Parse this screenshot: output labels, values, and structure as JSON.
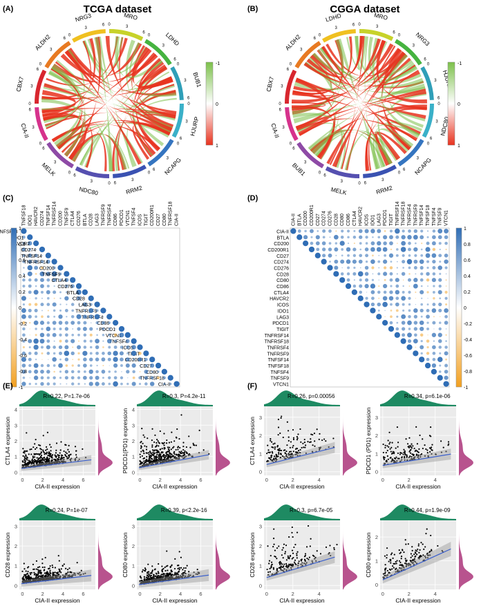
{
  "panels": {
    "A": {
      "tag": "(A)",
      "title": "TCGA dataset"
    },
    "B": {
      "tag": "(B)",
      "title": "CGGA dataset"
    },
    "C": {
      "tag": "(C)"
    },
    "D": {
      "tag": "(D)"
    },
    "E": {
      "tag": "(E)"
    },
    "F": {
      "tag": "(F)"
    }
  },
  "chart_data": [
    {
      "type": "chord",
      "panel": "A",
      "title": "TCGA dataset",
      "sectors": [
        "MRO",
        "LDHD",
        "BUB1",
        "HJURP",
        "NCAPG",
        "RRM2",
        "NDC80",
        "MELK",
        "CIA-II",
        "CBX7",
        "ALDH2",
        "NRG3"
      ],
      "sector_ticks": [
        0,
        3,
        6
      ],
      "legend": {
        "max": "-1",
        "mid": "0",
        "min": "1"
      },
      "colors": {
        "positive": "#e8321e",
        "negative": "#7cc04a"
      }
    },
    {
      "type": "chord",
      "panel": "B",
      "title": "CGGA dataset",
      "sectors": [
        "MRO",
        "NRG3",
        "HJURP",
        "NDC80",
        "NCAPG",
        "RRM2",
        "MELK",
        "BUB1",
        "CIA-II",
        "CBX7",
        "ALDH2",
        "LDHD"
      ],
      "sector_ticks": [
        0,
        3,
        6
      ],
      "legend": {
        "max": "-1",
        "mid": "0",
        "min": "1"
      },
      "colors": {
        "positive": "#e8321e",
        "negative": "#7cc04a"
      }
    },
    {
      "type": "heatmap",
      "panel": "C",
      "layout": "lower-triangle",
      "labels": [
        "TNFSF18",
        "IDO1",
        "HAVCR2",
        "CD274",
        "TNFSF14",
        "TNFRSF14",
        "CD200",
        "TNFSF9",
        "CTLA4",
        "CD276",
        "BTLA",
        "CD28",
        "LAG3",
        "TNFRSF9",
        "TNFRSF4",
        "CD86",
        "PDCD1",
        "VTCN1",
        "TNFSF4",
        "ICOS",
        "TIGIT",
        "CD200R1",
        "CD27",
        "CD80",
        "TNFRSF18",
        "CIA-II"
      ],
      "scale_ticks": [
        "1",
        "0.8",
        "0.6",
        "0.4",
        "0.2",
        "0",
        "-0.2",
        "-0.4",
        "-0.6",
        "-0.8",
        "-1"
      ],
      "range": [
        -1,
        1
      ]
    },
    {
      "type": "heatmap",
      "panel": "D",
      "layout": "upper-triangle",
      "labels": [
        "CIA-II",
        "BTLA",
        "CD200",
        "CD200R1",
        "CD27",
        "CD274",
        "CD276",
        "CD28",
        "CD80",
        "CD86",
        "CTLA4",
        "HAVCR2",
        "ICOS",
        "IDO1",
        "LAG3",
        "PDCD1",
        "TIGIT",
        "TNFRSF14",
        "TNFRSF18",
        "TNFRSF4",
        "TNFRSF9",
        "TNFSF14",
        "TNFSF18",
        "TNFSF4",
        "TNFSF9",
        "VTCN1"
      ],
      "scale_ticks": [
        "1",
        "0.8",
        "0.6",
        "0.4",
        "0.2",
        "0",
        "-0.2",
        "-0.4",
        "-0.6",
        "-0.8",
        "-1"
      ],
      "range": [
        -1,
        1
      ]
    },
    {
      "type": "scatter",
      "panel": "E",
      "stat": "R=0.22, P=1.7e-06",
      "xlabel": "CIA-II expression",
      "ylabel": "CTLA4 expression",
      "x_ticks": [
        0,
        2,
        4,
        6
      ],
      "y_ticks": [
        0,
        1,
        2,
        3,
        4
      ],
      "xlim": [
        -0.3,
        7.2
      ],
      "ylim": [
        -0.2,
        4.2
      ],
      "n": 420,
      "slope": 0.08,
      "intercept": 0.25,
      "spread": 0.55
    },
    {
      "type": "scatter",
      "panel": "E",
      "stat": "R=0.3, P=4.2e-11",
      "xlabel": "CIA-II expression",
      "ylabel": "PDCD1(PD1) expression",
      "x_ticks": [
        0,
        2,
        4,
        6
      ],
      "y_ticks": [
        0,
        1,
        2,
        3,
        4
      ],
      "xlim": [
        -0.3,
        7.2
      ],
      "ylim": [
        -0.2,
        4.2
      ],
      "n": 420,
      "slope": 0.12,
      "intercept": 0.3,
      "spread": 0.7
    },
    {
      "type": "scatter",
      "panel": "E",
      "stat": "R=0.24, P=1e-07",
      "xlabel": "CIA-II expression",
      "ylabel": "CD28 expression",
      "x_ticks": [
        0,
        2,
        4,
        6
      ],
      "y_ticks": [
        0,
        1,
        2,
        3
      ],
      "xlim": [
        -0.3,
        7.2
      ],
      "ylim": [
        -0.2,
        3.3
      ],
      "n": 420,
      "slope": 0.06,
      "intercept": 0.1,
      "spread": 0.35
    },
    {
      "type": "scatter",
      "panel": "E",
      "stat": "R=0.39, p<2.2e-16",
      "xlabel": "CIA-II expression",
      "ylabel": "CD80 expression",
      "x_ticks": [
        0,
        2,
        4,
        6
      ],
      "y_ticks": [
        0,
        1,
        2,
        3
      ],
      "xlim": [
        -0.3,
        7.2
      ],
      "ylim": [
        -0.2,
        3.3
      ],
      "n": 420,
      "slope": 0.07,
      "intercept": 0.05,
      "spread": 0.35
    },
    {
      "type": "scatter",
      "panel": "F",
      "stat": "R=0.26, p=0.00056",
      "xlabel": "CIA-II expression",
      "ylabel": "CTLA4 expression",
      "x_ticks": [
        0,
        2,
        4
      ],
      "y_ticks": [
        0,
        1,
        2,
        3
      ],
      "xlim": [
        -0.2,
        5.6
      ],
      "ylim": [
        -0.2,
        3.6
      ],
      "n": 170,
      "slope": 0.18,
      "intercept": 0.4,
      "spread": 0.75
    },
    {
      "type": "scatter",
      "panel": "F",
      "stat": "R=0.34, p=6.1e-06",
      "xlabel": "CIA-II expression",
      "ylabel": "PDCD1 (PD1) expression",
      "x_ticks": [
        0,
        2,
        4
      ],
      "y_ticks": [
        0,
        1,
        2,
        3
      ],
      "xlim": [
        -0.2,
        5.6
      ],
      "ylim": [
        -0.2,
        3.6
      ],
      "n": 170,
      "slope": 0.12,
      "intercept": 0.35,
      "spread": 0.6
    },
    {
      "type": "scatter",
      "panel": "F",
      "stat": "R=0.3, p=6.7e-05",
      "xlabel": "CIA-II expression",
      "ylabel": "CD28 expression",
      "x_ticks": [
        0,
        2,
        4
      ],
      "y_ticks": [
        0,
        1,
        2,
        3
      ],
      "xlim": [
        -0.2,
        5.6
      ],
      "ylim": [
        -0.2,
        3.3
      ],
      "n": 170,
      "slope": 0.2,
      "intercept": 0.4,
      "spread": 0.7
    },
    {
      "type": "scatter",
      "panel": "F",
      "stat": "R=0.44, p=1.9e-09",
      "xlabel": "CIA-II expression",
      "ylabel": "CD80 expression",
      "x_ticks": [
        0,
        2,
        4
      ],
      "y_ticks": [
        0,
        1,
        2
      ],
      "xlim": [
        -0.2,
        5.6
      ],
      "ylim": [
        -0.2,
        2.7
      ],
      "n": 170,
      "slope": 0.25,
      "intercept": 0.2,
      "spread": 0.55
    }
  ],
  "colors": {
    "chord_red": "#e8321e",
    "chord_green": "#7cc04a",
    "heat_blue": "#2f6db5",
    "heat_orange": "#f2a020",
    "density_green": "#1e8a62",
    "density_purple": "#b8538e",
    "trend_line": "#3a5fcd"
  }
}
